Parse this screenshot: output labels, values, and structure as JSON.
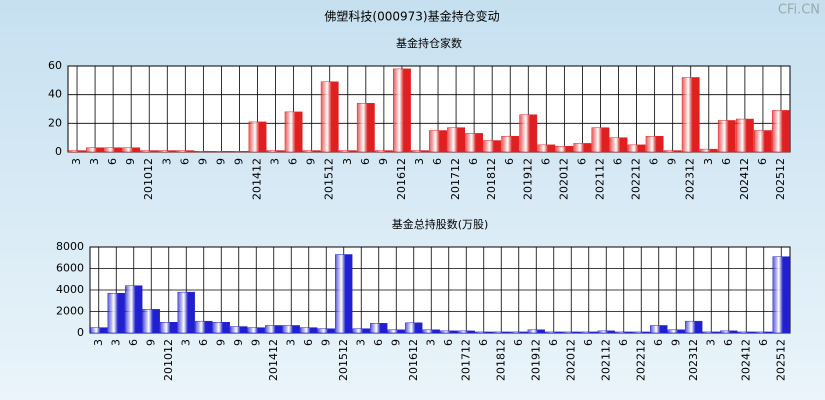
{
  "title": "佛塑科技(000973)基金持仓变动",
  "watermark": "CFi.CN",
  "chart_data": [
    {
      "type": "bar",
      "title": "基金持仓家数",
      "categories": [
        "3",
        "3",
        "6",
        "9",
        "201012",
        "3",
        "6",
        "9",
        "9",
        "9",
        "201412",
        "3",
        "6",
        "9",
        "201512",
        "3",
        "6",
        "9",
        "201612",
        "3",
        "6",
        "201712",
        "6",
        "201812",
        "6",
        "201912",
        "6",
        "202012",
        "6",
        "202112",
        "6",
        "202212",
        "6",
        "9",
        "202312",
        "3",
        "6",
        "202412",
        "6",
        "202512"
      ],
      "values": [
        1,
        3,
        3,
        3,
        1,
        1,
        1,
        0.5,
        0.5,
        0.5,
        21,
        1,
        28,
        1,
        49,
        1,
        34,
        1,
        58,
        1,
        15,
        17,
        13,
        8,
        11,
        26,
        5,
        4,
        6,
        17,
        10,
        5,
        11,
        1,
        52,
        2,
        22,
        23,
        15,
        29
      ],
      "color": "#e02020",
      "ylim": [
        0,
        60
      ],
      "yticks": [
        0,
        20,
        40,
        60
      ],
      "grid": true
    },
    {
      "type": "bar",
      "title": "基金总持股数(万股)",
      "categories": [
        "3",
        "3",
        "6",
        "9",
        "201012",
        "3",
        "6",
        "9",
        "9",
        "9",
        "201412",
        "3",
        "6",
        "9",
        "201512",
        "3",
        "6",
        "9",
        "201612",
        "3",
        "6",
        "201712",
        "6",
        "201812",
        "6",
        "201912",
        "6",
        "202012",
        "6",
        "202112",
        "6",
        "202212",
        "6",
        "9",
        "202312",
        "3",
        "6",
        "202412",
        "6",
        "202512"
      ],
      "values": [
        500,
        3700,
        4400,
        2200,
        1000,
        3800,
        1100,
        1000,
        600,
        500,
        700,
        700,
        500,
        400,
        7300,
        400,
        900,
        300,
        950,
        300,
        200,
        200,
        100,
        100,
        100,
        300,
        100,
        100,
        100,
        200,
        100,
        100,
        700,
        300,
        1100,
        100,
        200,
        100,
        100,
        7100
      ],
      "color": "#2020d0",
      "ylim": [
        0,
        8000
      ],
      "yticks": [
        0,
        2000,
        4000,
        6000,
        8000
      ],
      "grid": true
    }
  ]
}
